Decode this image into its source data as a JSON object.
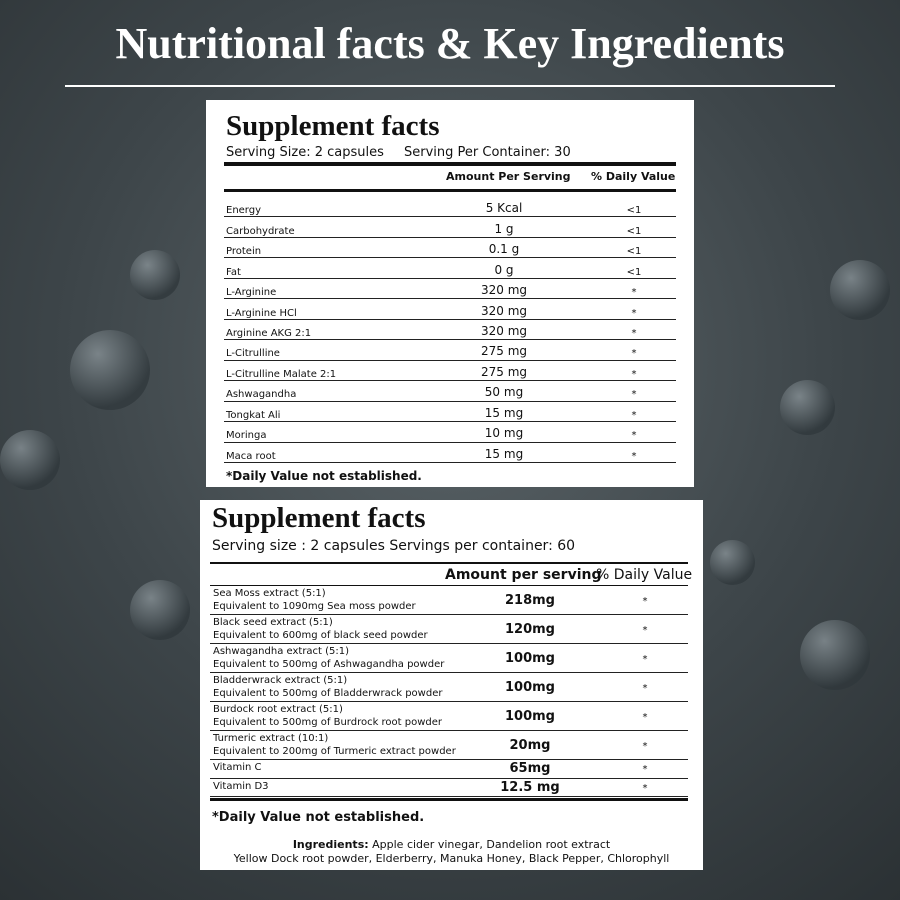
{
  "title": "Nutritional facts & Key Ingredients",
  "panel1": {
    "title": "Supplement facts",
    "serving": "Serving Size: 2 capsules",
    "per_container": "Serving Per Container: 30",
    "headers": [
      "Amount Per Serving",
      "% Daily Value"
    ],
    "rows": [
      [
        "Energy",
        "5 Kcal",
        "<1"
      ],
      [
        "Carbohydrate",
        "1 g",
        "<1"
      ],
      [
        "Protein",
        "0.1 g",
        "<1"
      ],
      [
        "Fat",
        "0 g",
        "<1"
      ],
      [
        "L-Arginine",
        "320 mg",
        "*"
      ],
      [
        "L-Arginine HCl",
        "320 mg",
        "*"
      ],
      [
        "Arginine AKG 2:1",
        "320 mg",
        "*"
      ],
      [
        "L-Citrulline",
        "275 mg",
        "*"
      ],
      [
        "L-Citrulline Malate 2:1",
        "275 mg",
        "*"
      ],
      [
        "Ashwagandha",
        "50 mg",
        "*"
      ],
      [
        "Tongkat Ali",
        "15 mg",
        "*"
      ],
      [
        "Moringa",
        "10 mg",
        "*"
      ],
      [
        "Maca root",
        "15 mg",
        "*"
      ]
    ],
    "footnote": "*Daily Value not established."
  },
  "panel2": {
    "title": "Supplement facts",
    "serving": "Serving size : 2 capsules Servings per container: 60",
    "headers": [
      "Amount per serving",
      "% Daily Value"
    ],
    "rows": [
      [
        "Sea Moss extract (5:1)",
        "Equivalent to 1090mg Sea moss powder",
        "218mg",
        "*"
      ],
      [
        "Black seed extract (5:1)",
        "Equivalent to 600mg of black seed powder",
        "120mg",
        "*"
      ],
      [
        "Ashwagandha extract (5:1)",
        "Equivalent to 500mg of Ashwagandha powder",
        "100mg",
        "*"
      ],
      [
        "Bladderwrack extract (5:1)",
        "Equivalent to 500mg of Bladderwrack powder",
        "100mg",
        "*"
      ],
      [
        "Burdock root extract (5:1)",
        "Equivalent to 500mg of Burdrock root powder",
        "100mg",
        "*"
      ],
      [
        "Turmeric extract (10:1)",
        "Equivalent to 200mg of Turmeric extract powder",
        "20mg",
        "*"
      ],
      [
        "Vitamin C",
        null,
        "65mg",
        "*"
      ],
      [
        "Vitamin D3",
        null,
        "12.5 mg",
        "*"
      ]
    ],
    "footnote": "*Daily Value not established.",
    "ingredients_label": "Ingredients:",
    "ingredients": [
      "Apple cider vinegar, Dandelion root extract",
      "Yellow Dock root powder, Elderberry, Manuka Honey, Black Pepper, Chlorophyll"
    ]
  }
}
